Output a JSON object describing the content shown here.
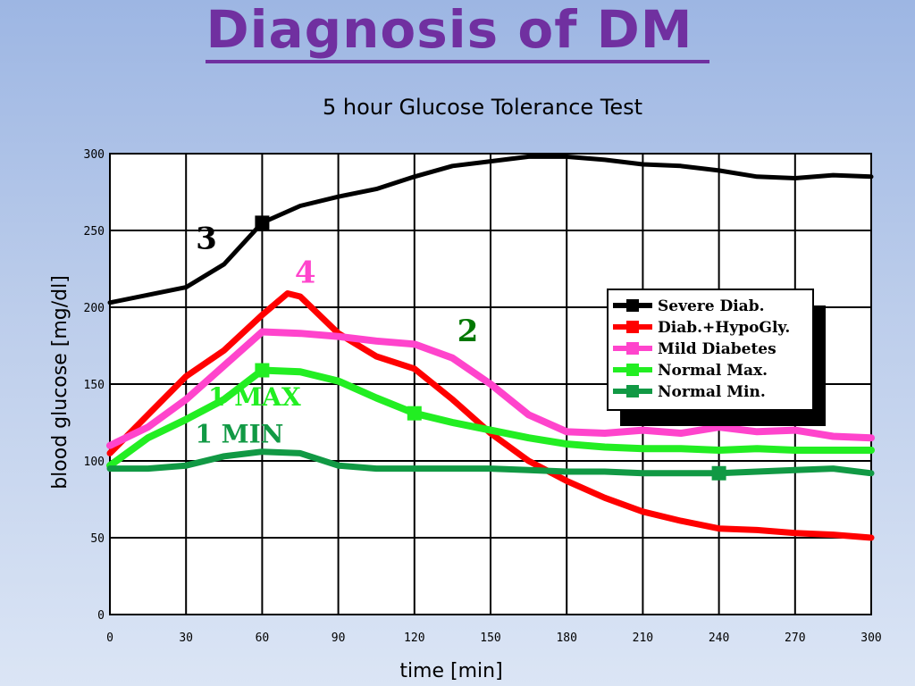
{
  "slide": {
    "title": "Diagnosis of DM"
  },
  "chart_data": {
    "type": "line",
    "title": "5 hour Glucose Tolerance Test",
    "xlabel": "time [min]",
    "ylabel": "blood glucose [mg/dl]",
    "xlim": [
      0,
      300
    ],
    "ylim": [
      0,
      300
    ],
    "xticks": [
      0,
      30,
      60,
      90,
      120,
      150,
      180,
      210,
      240,
      270,
      300
    ],
    "yticks": [
      0,
      50,
      100,
      150,
      200,
      250,
      300
    ],
    "xtick_labels": [
      "0",
      "30",
      "60",
      "90",
      "120",
      "150",
      "180",
      "210",
      "240",
      "270",
      "300"
    ],
    "ytick_labels": [
      "0",
      "50",
      "100",
      "150",
      "200",
      "250",
      "300"
    ],
    "grid": true,
    "legend_position": "right",
    "series": [
      {
        "name": "Severe Diab.",
        "color": "#000000",
        "x": [
          0,
          15,
          30,
          45,
          60,
          75,
          90,
          105,
          120,
          135,
          150,
          165,
          180,
          195,
          210,
          225,
          240,
          255,
          270,
          285,
          300
        ],
        "y": [
          203,
          208,
          213,
          228,
          255,
          266,
          272,
          277,
          285,
          292,
          295,
          298,
          298,
          296,
          293,
          292,
          289,
          285,
          284,
          286,
          285
        ]
      },
      {
        "name": "Diab.+HypoGly.",
        "color": "#ff0000",
        "x": [
          0,
          15,
          30,
          45,
          60,
          70,
          75,
          90,
          105,
          120,
          135,
          150,
          165,
          180,
          195,
          210,
          225,
          240,
          255,
          270,
          285,
          300
        ],
        "y": [
          105,
          130,
          155,
          172,
          195,
          209,
          207,
          183,
          168,
          160,
          140,
          118,
          100,
          87,
          76,
          67,
          61,
          56,
          55,
          53,
          52,
          50
        ]
      },
      {
        "name": "Mild Diabetes",
        "color": "#ff44cc",
        "x": [
          0,
          15,
          30,
          45,
          60,
          75,
          90,
          105,
          120,
          135,
          150,
          165,
          180,
          195,
          210,
          225,
          240,
          255,
          270,
          285,
          300
        ],
        "y": [
          110,
          122,
          140,
          162,
          184,
          183,
          181,
          178,
          176,
          167,
          150,
          130,
          119,
          118,
          120,
          118,
          122,
          119,
          120,
          116,
          115
        ]
      },
      {
        "name": "Normal Max.",
        "color": "#22ee22",
        "x": [
          0,
          15,
          30,
          45,
          60,
          75,
          90,
          105,
          120,
          135,
          150,
          165,
          180,
          195,
          210,
          225,
          240,
          255,
          270,
          285,
          300
        ],
        "y": [
          97,
          115,
          127,
          140,
          159,
          158,
          152,
          141,
          131,
          125,
          120,
          115,
          111,
          109,
          108,
          108,
          107,
          108,
          107,
          107,
          107
        ]
      },
      {
        "name": "Normal Min.",
        "color": "#119944",
        "x": [
          0,
          15,
          30,
          45,
          60,
          75,
          90,
          105,
          120,
          135,
          150,
          165,
          180,
          195,
          210,
          225,
          240,
          255,
          270,
          285,
          300
        ],
        "y": [
          95,
          95,
          97,
          103,
          106,
          105,
          97,
          95,
          95,
          95,
          95,
          94,
          93,
          93,
          92,
          92,
          92,
          93,
          94,
          95,
          92
        ]
      }
    ],
    "markers": [
      {
        "series": 0,
        "x": 60,
        "y": 255
      },
      {
        "series": 3,
        "x": 60,
        "y": 159
      },
      {
        "series": 3,
        "x": 120,
        "y": 131
      },
      {
        "series": 4,
        "x": 240,
        "y": 92
      }
    ],
    "annotations": [
      {
        "text": "3",
        "x": 38,
        "y": 238,
        "color": "#000000"
      },
      {
        "text": "4",
        "x": 77,
        "y": 216,
        "color": "#ff44cc"
      },
      {
        "text": "2",
        "x": 141,
        "y": 178,
        "color": "#007700"
      },
      {
        "text": "1 MAX",
        "x": 57,
        "y": 136,
        "color": "#22ee22"
      },
      {
        "text": "1 MIN",
        "x": 51,
        "y": 112,
        "color": "#119944"
      }
    ]
  }
}
